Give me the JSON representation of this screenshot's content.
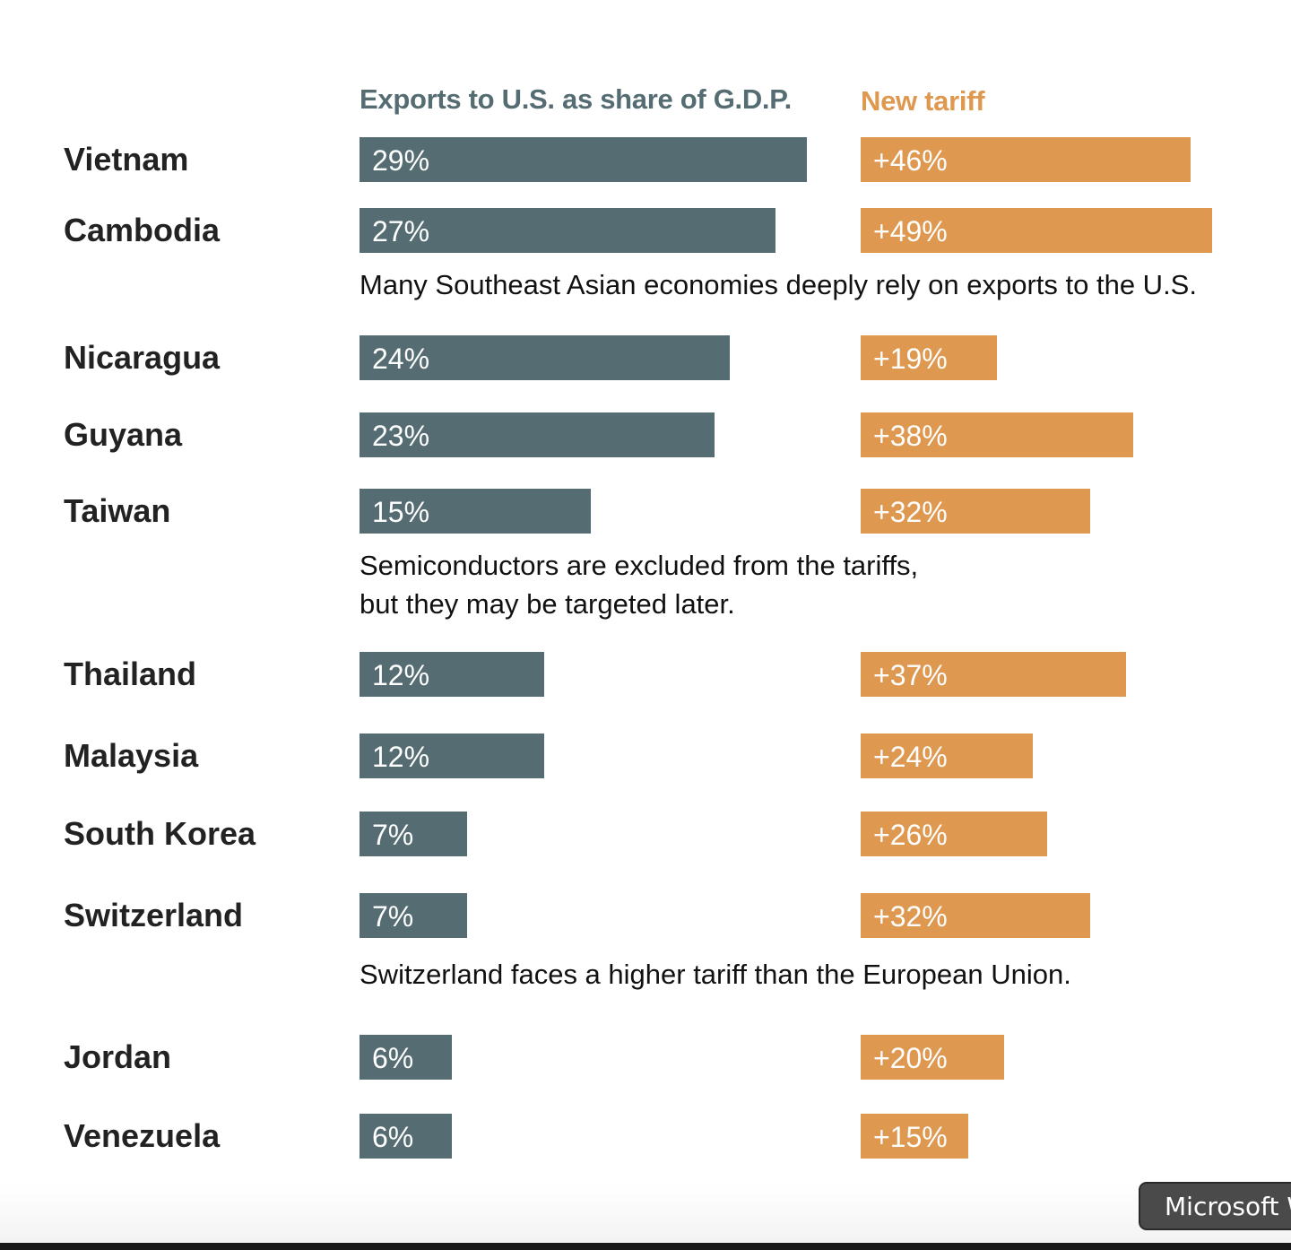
{
  "chart_data": {
    "type": "bar",
    "title": "",
    "columns": [
      {
        "name": "Exports to U.S. as share of G.D.P.",
        "color": "#556d72",
        "max": 30
      },
      {
        "name": "New tariff",
        "color": "#de9850",
        "max": 50
      }
    ],
    "categories": [
      "Vietnam",
      "Cambodia",
      "Nicaragua",
      "Guyana",
      "Taiwan",
      "Thailand",
      "Malaysia",
      "South Korea",
      "Switzerland",
      "Jordan",
      "Venezuela"
    ],
    "series": [
      {
        "name": "Exports to U.S. as share of G.D.P.",
        "values": [
          29,
          27,
          24,
          23,
          15,
          12,
          12,
          7,
          7,
          6,
          6
        ],
        "labels": [
          "29%",
          "27%",
          "24%",
          "23%",
          "15%",
          "12%",
          "12%",
          "7%",
          "7%",
          "6%",
          "6%"
        ]
      },
      {
        "name": "New tariff",
        "values": [
          46,
          49,
          19,
          38,
          32,
          37,
          24,
          26,
          32,
          20,
          15
        ],
        "labels": [
          "+46%",
          "+49%",
          "+19%",
          "+38%",
          "+32%",
          "+37%",
          "+24%",
          "+26%",
          "+32%",
          "+20%",
          "+15%"
        ]
      }
    ],
    "annotations": [
      {
        "after": "Cambodia",
        "text": "Many Southeast Asian economies deeply rely on exports to the U.S."
      },
      {
        "after": "Taiwan",
        "text": "Semiconductors are excluded from the tariffs,\nbut they may be targeted later."
      },
      {
        "after": "Switzerland",
        "text": "Switzerland faces a higher tariff than the European Union."
      }
    ]
  },
  "tooltip": {
    "text": "Microsoft W"
  }
}
